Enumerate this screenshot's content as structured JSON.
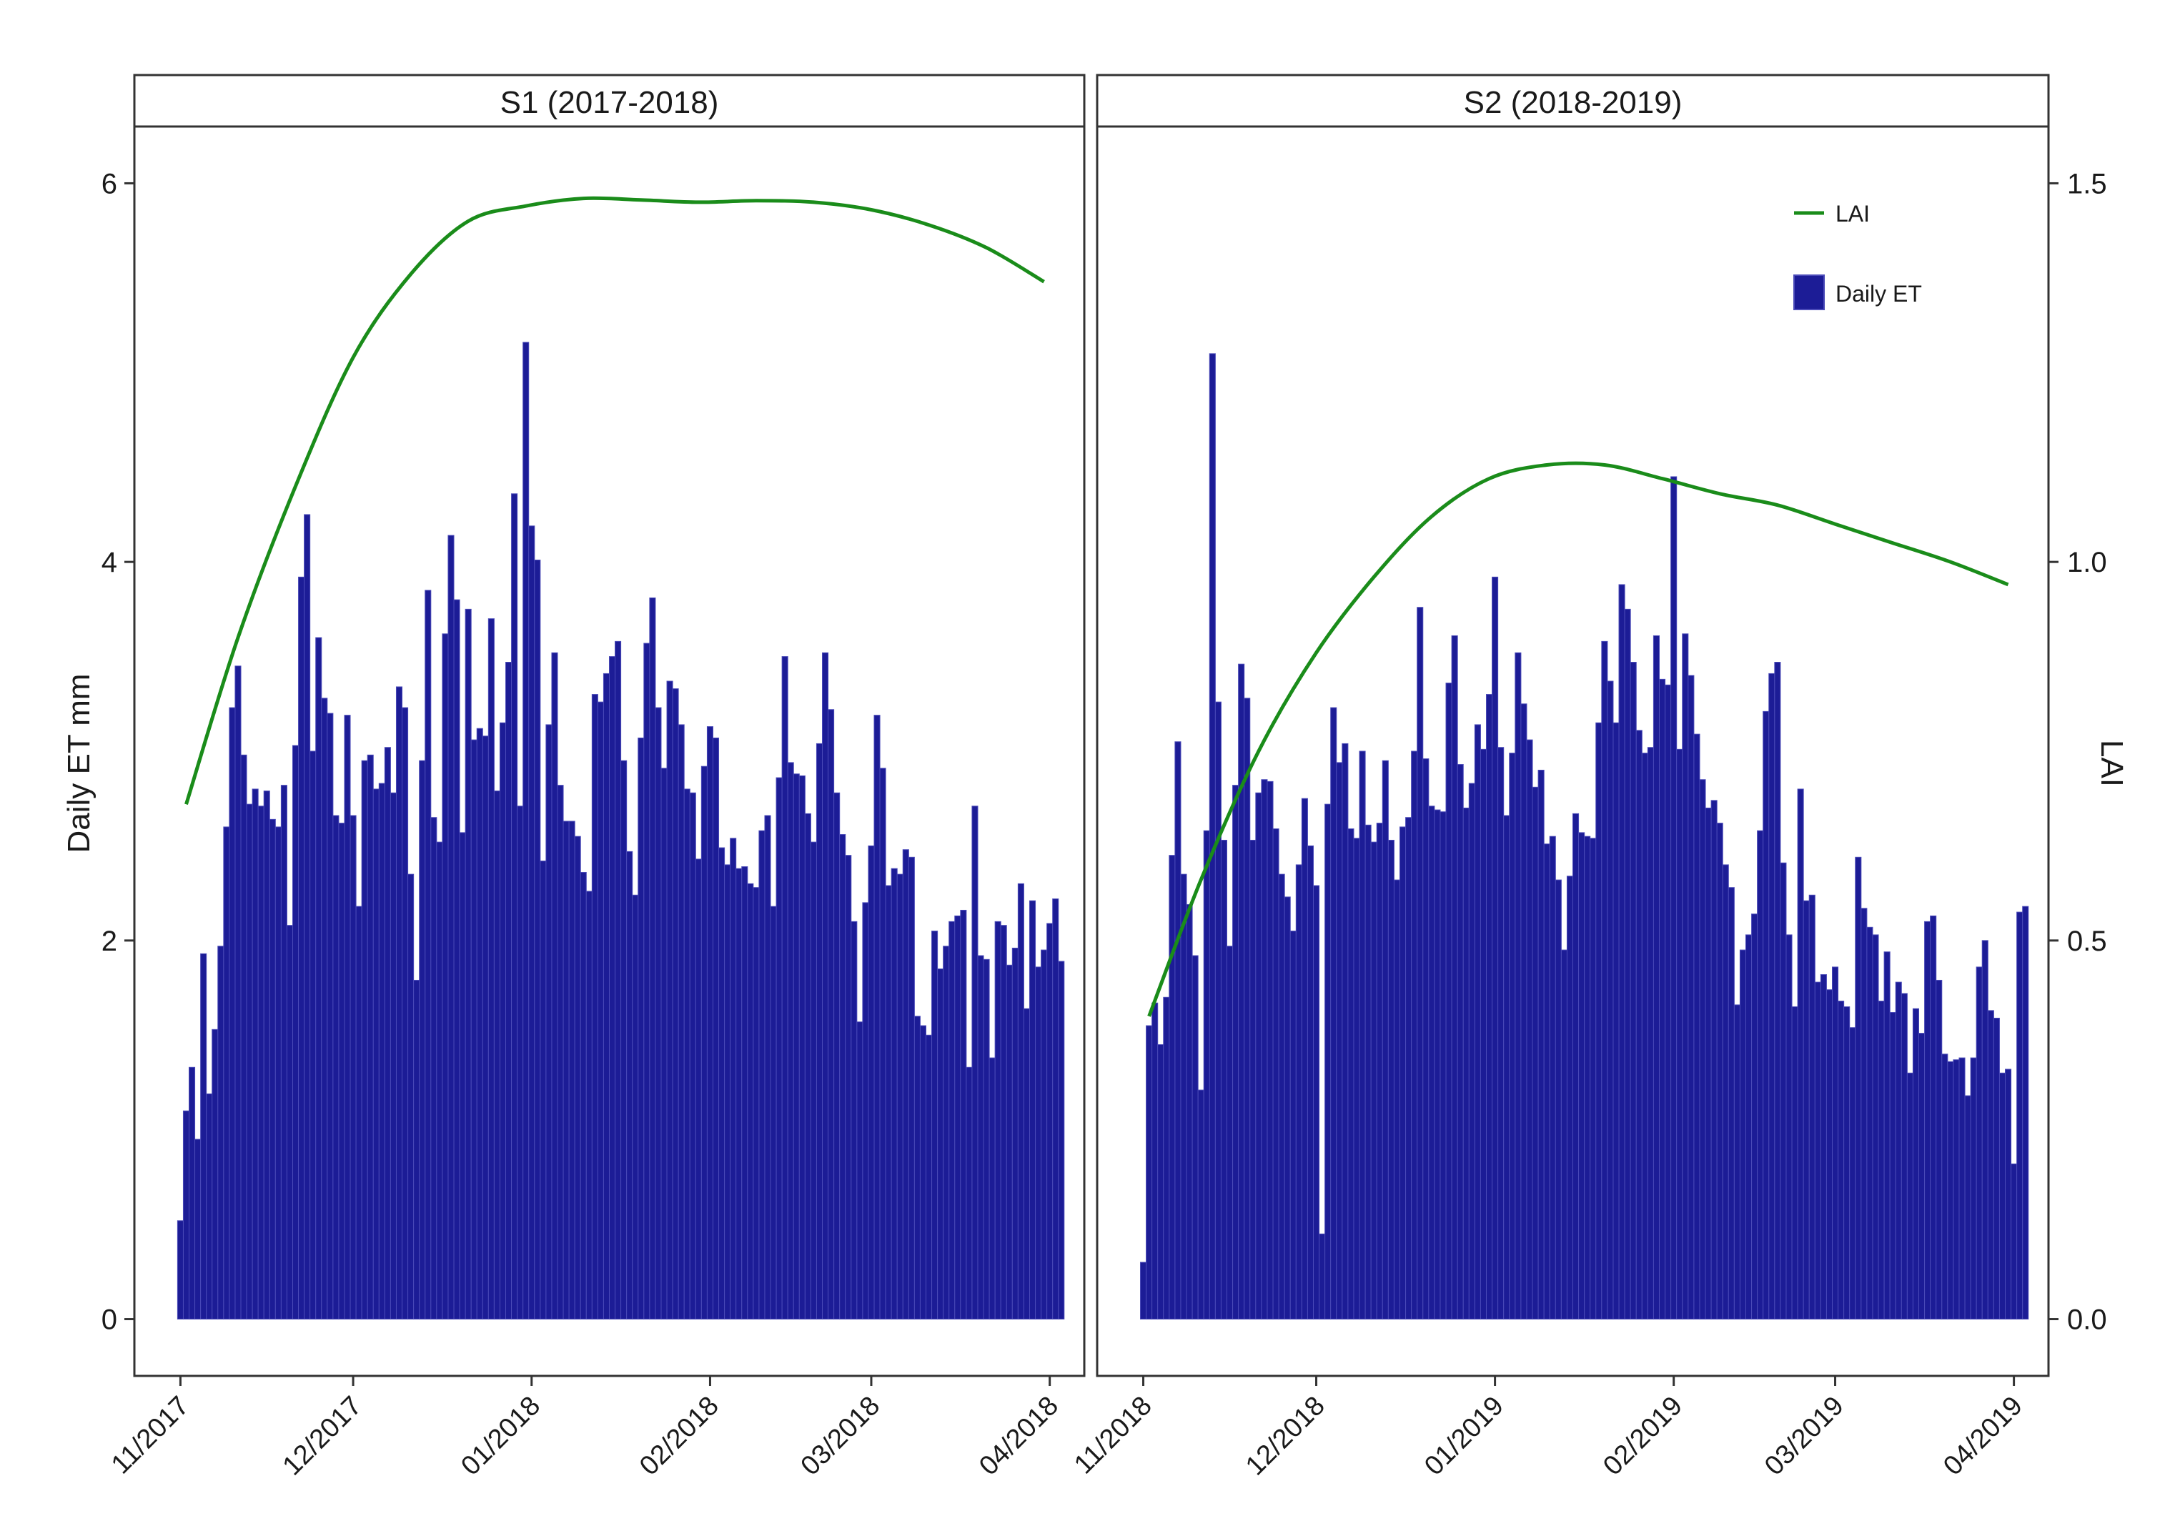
{
  "chart_data": {
    "type": "bar",
    "combined_with": "line",
    "y_left_label": "Daily ET mm",
    "y_right_label": "LAI",
    "y_left_ticks": [
      "0",
      "2",
      "4",
      "6"
    ],
    "y_right_ticks": [
      "0.0",
      "0.5",
      "1.0",
      "1.5"
    ],
    "y_left_range": [
      -0.3,
      6.3
    ],
    "y_right_range": [
      -0.075,
      1.575
    ],
    "legend": [
      {
        "name": "LAI",
        "type": "line",
        "color": "#1a8c1a"
      },
      {
        "name": "Daily ET",
        "type": "bar",
        "color": "#1c1c96"
      }
    ],
    "colors": {
      "bar": "#1c1c96",
      "bar_edge": "#4a4ab8",
      "line": "#1a8c1a",
      "frame": "#333333",
      "strip_bg": "#ffffff"
    },
    "panels": [
      {
        "title": "S1 (2017-2018)",
        "x_ticks": [
          "11/2017",
          "12/2017",
          "01/2018",
          "02/2018",
          "03/2018",
          "04/2018"
        ],
        "x_tick_days": [
          0,
          30,
          61,
          92,
          120,
          151
        ],
        "x_range": [
          -8,
          157
        ],
        "bar_start_day": 0,
        "daily_et": [
          0.52,
          1.1,
          1.33,
          0.95,
          1.93,
          1.19,
          1.53,
          1.97,
          2.6,
          3.23,
          3.45,
          2.98,
          2.72,
          2.8,
          2.71,
          2.79,
          2.64,
          2.6,
          2.82,
          2.08,
          3.03,
          3.92,
          4.25,
          3.0,
          3.6,
          3.28,
          3.2,
          2.66,
          2.62,
          3.19,
          2.66,
          2.18,
          2.95,
          2.98,
          2.8,
          2.83,
          3.02,
          2.78,
          3.34,
          3.23,
          2.35,
          1.79,
          2.95,
          3.85,
          2.65,
          2.52,
          3.62,
          4.14,
          3.8,
          2.57,
          3.75,
          3.06,
          3.12,
          3.08,
          3.7,
          2.79,
          3.15,
          3.47,
          4.36,
          2.71,
          5.16,
          4.19,
          4.01,
          2.42,
          3.14,
          3.52,
          2.82,
          2.63,
          2.63,
          2.55,
          2.36,
          2.26,
          3.3,
          3.26,
          3.41,
          3.5,
          3.58,
          2.95,
          2.47,
          2.24,
          3.07,
          3.57,
          3.81,
          3.23,
          2.91,
          3.37,
          3.33,
          3.14,
          2.8,
          2.78,
          2.43,
          2.92,
          3.13,
          3.07,
          2.49,
          2.4,
          2.54,
          2.38,
          2.39,
          2.3,
          2.28,
          2.58,
          2.66,
          2.18,
          2.86,
          3.5,
          2.94,
          2.88,
          2.87,
          2.67,
          2.52,
          3.04,
          3.52,
          3.22,
          2.78,
          2.56,
          2.45,
          2.1,
          1.57,
          2.2,
          2.5,
          3.19,
          2.91,
          2.29,
          2.38,
          2.35,
          2.48,
          2.44,
          1.6,
          1.55,
          1.5,
          2.05,
          1.85,
          1.97,
          2.1,
          2.13,
          2.16,
          1.33,
          2.71,
          1.92,
          1.9,
          1.38,
          2.1,
          2.08,
          1.87,
          1.96,
          2.3,
          1.64,
          2.21,
          1.86,
          1.95,
          2.09,
          2.22,
          1.89
        ],
        "lai": {
          "days": [
            1,
            10,
            20,
            30,
            40,
            50,
            60,
            70,
            80,
            90,
            100,
            110,
            120,
            130,
            140,
            150
          ],
          "values": [
            0.68,
            0.9,
            1.1,
            1.27,
            1.38,
            1.45,
            1.47,
            1.48,
            1.478,
            1.475,
            1.477,
            1.475,
            1.465,
            1.445,
            1.415,
            1.37
          ]
        }
      },
      {
        "title": "S2 (2018-2019)",
        "x_ticks": [
          "11/2018",
          "12/2018",
          "01/2019",
          "02/2019",
          "03/2019",
          "04/2019"
        ],
        "x_tick_days": [
          0,
          30,
          61,
          92,
          120,
          151
        ],
        "x_range": [
          -8,
          157
        ],
        "bar_start_day": 0,
        "daily_et": [
          0.3,
          1.55,
          1.67,
          1.45,
          1.7,
          2.45,
          3.05,
          2.35,
          2.19,
          1.92,
          1.21,
          2.58,
          5.1,
          3.26,
          2.53,
          1.97,
          2.82,
          3.46,
          3.28,
          2.53,
          2.78,
          2.85,
          2.84,
          2.59,
          2.35,
          2.23,
          2.05,
          2.4,
          2.75,
          2.5,
          2.29,
          0.45,
          2.72,
          3.23,
          2.94,
          3.04,
          2.59,
          2.54,
          3.0,
          2.61,
          2.52,
          2.62,
          2.95,
          2.53,
          2.32,
          2.6,
          2.65,
          3.0,
          3.76,
          2.96,
          2.71,
          2.69,
          2.68,
          3.36,
          3.61,
          2.93,
          2.7,
          2.83,
          3.14,
          3.01,
          3.3,
          3.92,
          3.02,
          2.66,
          2.99,
          3.52,
          3.25,
          3.06,
          2.81,
          2.9,
          2.51,
          2.55,
          2.32,
          1.95,
          2.34,
          2.67,
          2.57,
          2.55,
          2.54,
          3.15,
          3.58,
          3.37,
          3.15,
          3.88,
          3.75,
          3.47,
          3.11,
          2.99,
          3.02,
          3.61,
          3.38,
          3.35,
          4.45,
          3.01,
          3.62,
          3.4,
          3.09,
          2.85,
          2.7,
          2.74,
          2.62,
          2.4,
          2.28,
          1.66,
          1.95,
          2.03,
          2.14,
          2.58,
          3.21,
          3.41,
          3.47,
          2.41,
          2.03,
          1.65,
          2.8,
          2.21,
          2.24,
          1.78,
          1.82,
          1.74,
          1.86,
          1.68,
          1.65,
          1.54,
          2.44,
          2.17,
          2.07,
          2.03,
          1.68,
          1.94,
          1.62,
          1.78,
          1.72,
          1.3,
          1.64,
          1.51,
          2.1,
          2.13,
          1.79,
          1.4,
          1.36,
          1.37,
          1.38,
          1.18,
          1.38,
          1.86,
          2.0,
          1.63,
          1.59,
          1.3,
          1.32,
          0.82,
          2.15,
          2.18
        ],
        "lai": {
          "days": [
            1,
            10,
            20,
            30,
            40,
            50,
            60,
            70,
            80,
            90,
            100,
            110,
            120,
            130,
            140,
            150
          ],
          "values": [
            0.4,
            0.58,
            0.75,
            0.88,
            0.98,
            1.06,
            1.11,
            1.128,
            1.128,
            1.11,
            1.09,
            1.075,
            1.05,
            1.025,
            1.0,
            0.97
          ]
        }
      }
    ]
  }
}
